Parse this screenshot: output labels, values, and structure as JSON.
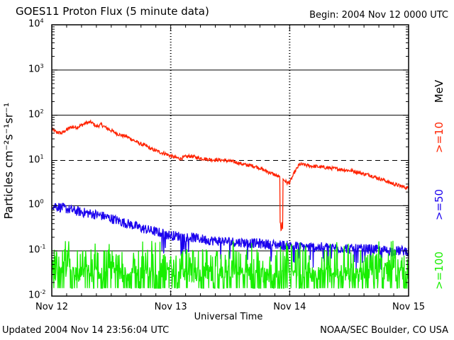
{
  "header": {
    "title": "GOES11 Proton Flux (5 minute data)",
    "begin": "Begin: 2004 Nov 12 0000 UTC"
  },
  "footer": {
    "updated": "Updated 2004 Nov 14 23:56:04 UTC",
    "credit": "NOAA/SEC Boulder, CO USA"
  },
  "colors": {
    "ge10": "#ff2200",
    "ge50": "#1a00ee",
    "ge100": "#18ee00",
    "axis": "#000000"
  },
  "chart_data": {
    "type": "line",
    "title": "GOES11 Proton Flux (5 minute data)",
    "xlabel": "Universal Time",
    "ylabel": "Particles cm⁻²s⁻¹sr⁻¹",
    "yscale": "log",
    "ylim": [
      0.01,
      10000
    ],
    "xlim": [
      0,
      72
    ],
    "x_units": "hours since 2004 Nov 12 0000 UTC",
    "x_ticks": [
      {
        "value": 0,
        "label": "Nov 12"
      },
      {
        "value": 24,
        "label": "Nov 13"
      },
      {
        "value": 48,
        "label": "Nov 14"
      },
      {
        "value": 72,
        "label": "Nov 15"
      }
    ],
    "y_ticks": [
      {
        "value": 0.01,
        "base": "10",
        "exp": "-2"
      },
      {
        "value": 0.1,
        "base": "10",
        "exp": "-1"
      },
      {
        "value": 1,
        "base": "10",
        "exp": "0"
      },
      {
        "value": 10,
        "base": "10",
        "exp": "1"
      },
      {
        "value": 100,
        "base": "10",
        "exp": "2"
      },
      {
        "value": 1000,
        "base": "10",
        "exp": "3"
      },
      {
        "value": 10000,
        "base": "10",
        "exp": "4"
      }
    ],
    "gridlines": [
      {
        "value": 10000,
        "style": "solid"
      },
      {
        "value": 1000,
        "style": "solid"
      },
      {
        "value": 100,
        "style": "solid"
      },
      {
        "value": 10,
        "style": "dashed"
      },
      {
        "value": 1,
        "style": "solid"
      },
      {
        "value": 0.1,
        "style": "solid"
      }
    ],
    "legend_unit": "MeV",
    "series": [
      {
        "name": ">=10",
        "color": "#ff2200",
        "noise": 0.04,
        "x": [
          0,
          1,
          2,
          3,
          4,
          5,
          6,
          7,
          8,
          9,
          10,
          11,
          12,
          13,
          14,
          15,
          16,
          17,
          18,
          19,
          20,
          21,
          22,
          23,
          24,
          25,
          26,
          27,
          28,
          29,
          30,
          31,
          32,
          33,
          34,
          35,
          36,
          37,
          38,
          39,
          40,
          41,
          42,
          43,
          44,
          45,
          46,
          47,
          47.5,
          48,
          48.5,
          49,
          50,
          51,
          52,
          53,
          54,
          55,
          56,
          57,
          58,
          59,
          60,
          61,
          62,
          63,
          64,
          65,
          66,
          67,
          68,
          69,
          70,
          71,
          72
        ],
        "y": [
          48,
          42,
          40,
          48,
          55,
          54,
          60,
          68,
          70,
          56,
          62,
          52,
          46,
          40,
          36,
          34,
          30,
          26,
          23,
          21,
          18,
          16.5,
          15,
          14,
          12.5,
          11.5,
          11,
          12,
          12.5,
          11.8,
          11.2,
          10.8,
          10.5,
          10.3,
          10.2,
          10,
          9.6,
          9.2,
          8.6,
          8,
          7.8,
          7.4,
          6.8,
          6,
          5.4,
          4.8,
          4.2,
          3.6,
          3.2,
          3.2,
          4.2,
          5.5,
          8.2,
          8,
          7.6,
          7.4,
          7.2,
          7,
          6.8,
          6.6,
          6.4,
          6.2,
          6,
          5.8,
          5.4,
          5,
          4.8,
          4.4,
          4,
          3.7,
          3.3,
          3,
          2.8,
          2.6,
          2.4
        ]
      },
      {
        "name": ">=50",
        "color": "#1a00ee",
        "noise": 0.11,
        "x": [
          0,
          2,
          4,
          6,
          8,
          10,
          12,
          14,
          16,
          18,
          20,
          22,
          24,
          28,
          32,
          36,
          40,
          44,
          48,
          52,
          56,
          60,
          64,
          68,
          72
        ],
        "y": [
          1.05,
          0.9,
          0.8,
          0.72,
          0.66,
          0.6,
          0.52,
          0.44,
          0.38,
          0.32,
          0.28,
          0.25,
          0.22,
          0.2,
          0.17,
          0.16,
          0.15,
          0.14,
          0.13,
          0.12,
          0.12,
          0.11,
          0.11,
          0.1,
          0.1
        ]
      },
      {
        "name": ">=100",
        "color": "#18ee00",
        "noise": 0.25,
        "x": [
          0,
          72
        ],
        "y": [
          0.03,
          0.03
        ]
      }
    ],
    "annotations": [
      {
        "series": ">=10",
        "x": 46.3,
        "y": 0.25,
        "note": "deep dip (data gap)"
      }
    ]
  }
}
